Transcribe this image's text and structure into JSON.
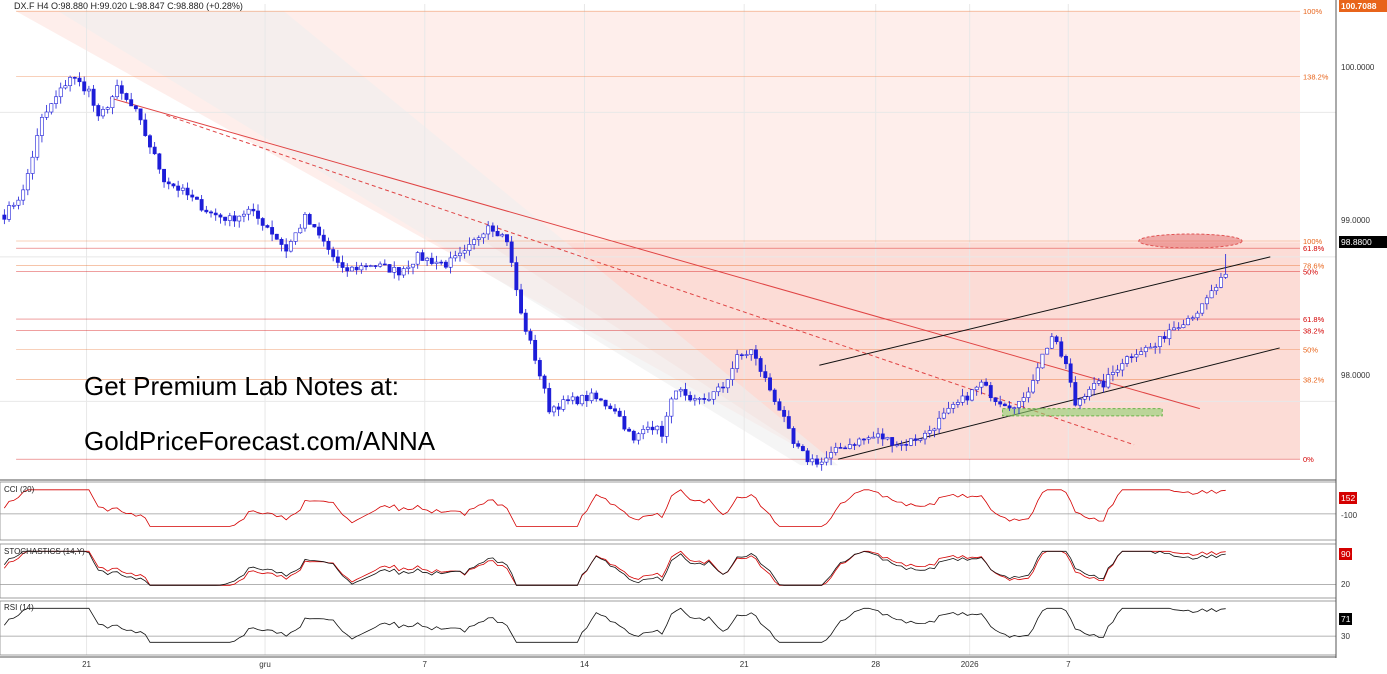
{
  "header": {
    "text": "DX.F  H4  O:98.880  H:99.020  L:98.847  C:98.880  (+0.28%)"
  },
  "promo": {
    "line1": "Get Premium Lab Notes at:",
    "line2": "GoldPriceForecast.com/ANNA"
  },
  "price_axis": {
    "ticks": [
      "100.0000",
      "99.0000",
      "98.0000"
    ],
    "top_tag": "100.7088",
    "last_price": "98.8800"
  },
  "panels": {
    "cci": {
      "label": "CCI (20)",
      "tick": "-100",
      "value": "152"
    },
    "stochastics": {
      "label": "STOCHASTICS (14,Y)",
      "tick": "20",
      "value": "90"
    },
    "rsi": {
      "label": "RSI (14)",
      "tick": "30",
      "value": "71"
    }
  },
  "colors": {
    "bull_candle": "#ffffff",
    "bear_candle": "#1d1dd8",
    "resistance": "#e04444",
    "channel": "#111111",
    "target_ellipse": "#e05555",
    "support_zone": "#8fd16f",
    "fib_orange": "#e8641b",
    "fib_red": "#d40000"
  },
  "chart_data": {
    "type": "candlestick",
    "symbol": "DX.F",
    "timeframe": "H4",
    "ohlc_last": {
      "open": 98.88,
      "high": 99.02,
      "low": 98.847,
      "close": 98.88,
      "change": "+0.28%"
    },
    "x_ticks": [
      "21",
      "gru",
      "7",
      "14",
      "21",
      "28",
      "2026",
      "7"
    ],
    "y_range": [
      97.47,
      100.75
    ],
    "anchors": [
      [
        0,
        99.29
      ],
      [
        4,
        99.45
      ],
      [
        8,
        99.95
      ],
      [
        14,
        100.25
      ],
      [
        18,
        100.15
      ],
      [
        20,
        99.95
      ],
      [
        24,
        100.16
      ],
      [
        28,
        100.0
      ],
      [
        34,
        99.54
      ],
      [
        38,
        99.45
      ],
      [
        44,
        99.3
      ],
      [
        48,
        99.26
      ],
      [
        52,
        99.32
      ],
      [
        56,
        99.21
      ],
      [
        60,
        99.05
      ],
      [
        64,
        99.27
      ],
      [
        68,
        99.1
      ],
      [
        72,
        98.9
      ],
      [
        78,
        98.95
      ],
      [
        84,
        98.9
      ],
      [
        88,
        99.0
      ],
      [
        94,
        98.95
      ],
      [
        98,
        99.02
      ],
      [
        103,
        99.23
      ],
      [
        107,
        99.12
      ],
      [
        110,
        98.6
      ],
      [
        113,
        98.3
      ],
      [
        116,
        97.95
      ],
      [
        120,
        98.0
      ],
      [
        125,
        98.03
      ],
      [
        130,
        97.95
      ],
      [
        134,
        97.72
      ],
      [
        137,
        97.85
      ],
      [
        140,
        97.78
      ],
      [
        143,
        98.1
      ],
      [
        146,
        97.98
      ],
      [
        150,
        98.03
      ],
      [
        153,
        98.1
      ],
      [
        156,
        98.3
      ],
      [
        159,
        98.35
      ],
      [
        162,
        98.15
      ],
      [
        165,
        97.95
      ],
      [
        168,
        97.7
      ],
      [
        171,
        97.6
      ],
      [
        174,
        97.58
      ],
      [
        178,
        97.68
      ],
      [
        182,
        97.73
      ],
      [
        186,
        97.76
      ],
      [
        191,
        97.7
      ],
      [
        196,
        97.77
      ],
      [
        200,
        97.9
      ],
      [
        204,
        98.01
      ],
      [
        208,
        98.12
      ],
      [
        211,
        98.02
      ],
      [
        214,
        97.98
      ],
      [
        217,
        98.0
      ],
      [
        220,
        98.25
      ],
      [
        223,
        98.45
      ],
      [
        226,
        98.25
      ],
      [
        228,
        97.98
      ],
      [
        231,
        98.1
      ],
      [
        234,
        98.12
      ],
      [
        238,
        98.28
      ],
      [
        241,
        98.35
      ],
      [
        245,
        98.38
      ],
      [
        248,
        98.5
      ],
      [
        252,
        98.58
      ],
      [
        255,
        98.65
      ],
      [
        257,
        98.75
      ],
      [
        260,
        98.88
      ]
    ],
    "fib_levels_right": [
      {
        "label": "100%",
        "value": 100.7,
        "color": "orange"
      },
      {
        "label": "138.2%",
        "value": 100.25,
        "color": "orange"
      },
      {
        "label": "100%",
        "value": 99.11,
        "color": "orange"
      },
      {
        "label": "61.8%",
        "value": 99.06,
        "color": "red"
      },
      {
        "label": "78.6%",
        "value": 98.94,
        "color": "orange"
      },
      {
        "label": "50%",
        "value": 98.9,
        "color": "red"
      },
      {
        "label": "61.8%",
        "value": 98.57,
        "color": "red"
      },
      {
        "label": "38.2%",
        "value": 98.49,
        "color": "red"
      },
      {
        "label": "50%",
        "value": 98.36,
        "color": "orange"
      },
      {
        "label": "38.2%",
        "value": 98.15,
        "color": "orange"
      },
      {
        "label": "0%",
        "value": 97.6,
        "color": "red"
      }
    ],
    "trendlines": [
      {
        "name": "resistance",
        "style": "solid",
        "x": [
          23,
          255
        ],
        "y": [
          100.1,
          97.95
        ]
      },
      {
        "name": "resistance-dashed",
        "style": "dashed",
        "x": [
          35,
          241
        ],
        "y": [
          99.98,
          97.7
        ]
      },
      {
        "name": "channel-upper",
        "style": "solid",
        "x": [
          174,
          270
        ],
        "y": [
          98.25,
          99.0
        ]
      },
      {
        "name": "channel-lower",
        "style": "solid",
        "x": [
          178,
          272
        ],
        "y": [
          97.6,
          98.37
        ]
      }
    ],
    "target_zone": {
      "x": [
        242,
        264
      ],
      "y_center": 99.11
    },
    "support_zone": {
      "x": [
        213,
        247
      ],
      "y": [
        97.9,
        97.95
      ]
    },
    "indicators": {
      "cci": {
        "levels": [
          -100
        ],
        "last": 152
      },
      "stochastics": {
        "levels": [
          20
        ],
        "last": 90
      },
      "rsi": {
        "levels": [
          30
        ],
        "last": 71
      }
    }
  }
}
